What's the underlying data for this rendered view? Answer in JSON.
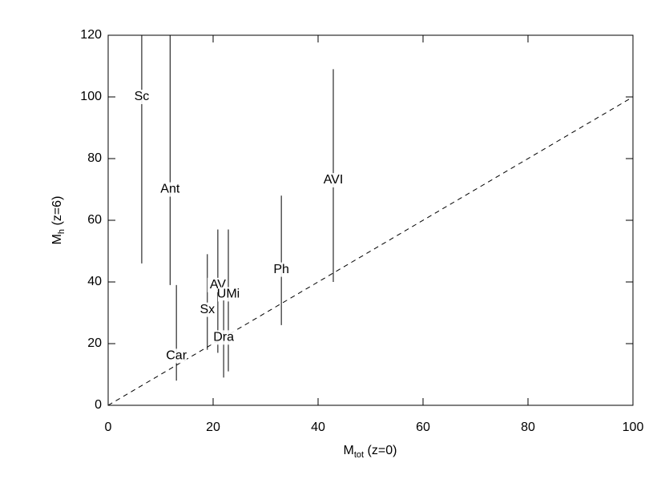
{
  "chart_data": {
    "type": "errorbar",
    "x_label": {
      "main": "M",
      "sub": "tot",
      "rest": " (z=0)"
    },
    "y_label": {
      "main": "M",
      "sub": "h",
      "rest": " (z=6)"
    },
    "categories": [
      "Sc",
      "Ant",
      "Car",
      "Sx",
      "AV",
      "UMi",
      "Dra",
      "Ph",
      "AVI"
    ],
    "x": [
      6.4,
      11.8,
      13,
      18.9,
      20.9,
      22.9,
      22,
      33,
      42.9
    ],
    "values": [
      100,
      70,
      16,
      31,
      39,
      36,
      22,
      44,
      73
    ],
    "lower": [
      46,
      39,
      8,
      18,
      17,
      11,
      9,
      26,
      40
    ],
    "upper": [
      120,
      120,
      39,
      49,
      57,
      57,
      34,
      68,
      109
    ],
    "color": "#000000",
    "diagonal": {
      "x": [
        0,
        100
      ],
      "y": [
        0,
        100
      ]
    },
    "xlim": [
      0,
      100
    ],
    "xticks": [
      0,
      20,
      40,
      60,
      80,
      100
    ],
    "ylim": [
      0,
      120
    ],
    "yticks": [
      0,
      20,
      40,
      60,
      80,
      100,
      120
    ]
  }
}
